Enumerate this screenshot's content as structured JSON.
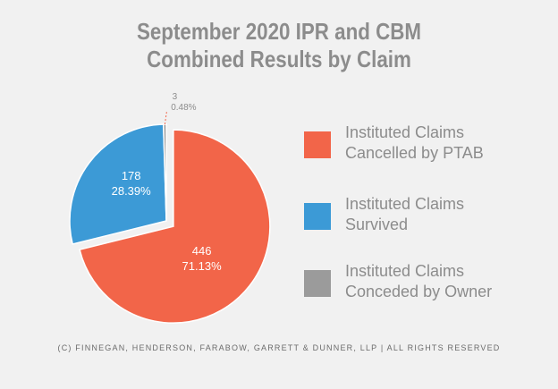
{
  "title": {
    "line1": "September 2020 IPR and CBM",
    "line2": "Combined Results by Claim"
  },
  "footer": "(C) FINNEGAN, HENDERSON, FARABOW, GARRETT & DUNNER, LLP | ALL RIGHTS RESERVED",
  "colors": {
    "cancelled": "#f26549",
    "survived": "#3c9ad6",
    "conceded": "#9b9b9b",
    "text": "#8c8c8c"
  },
  "legend": [
    {
      "line1": "Instituted Claims",
      "line2": "Cancelled by PTAB"
    },
    {
      "line1": "Instituted Claims",
      "line2": "Survived"
    },
    {
      "line1": "Instituted Claims",
      "line2": "Conceded by Owner"
    }
  ],
  "chart_data": {
    "type": "pie",
    "title": "September 2020 IPR and CBM Combined Results by Claim",
    "slices": [
      {
        "category": "Instituted Claims Cancelled by PTAB",
        "value": 446,
        "percent_label": "71.13%",
        "color": "#f26549"
      },
      {
        "category": "Instituted Claims Survived",
        "value": 178,
        "percent_label": "28.39%",
        "color": "#3c9ad6"
      },
      {
        "category": "Instituted Claims Conceded by Owner",
        "value": 3,
        "percent_label": "0.48%",
        "color": "#9b9b9b"
      }
    ],
    "legend_position": "right"
  }
}
